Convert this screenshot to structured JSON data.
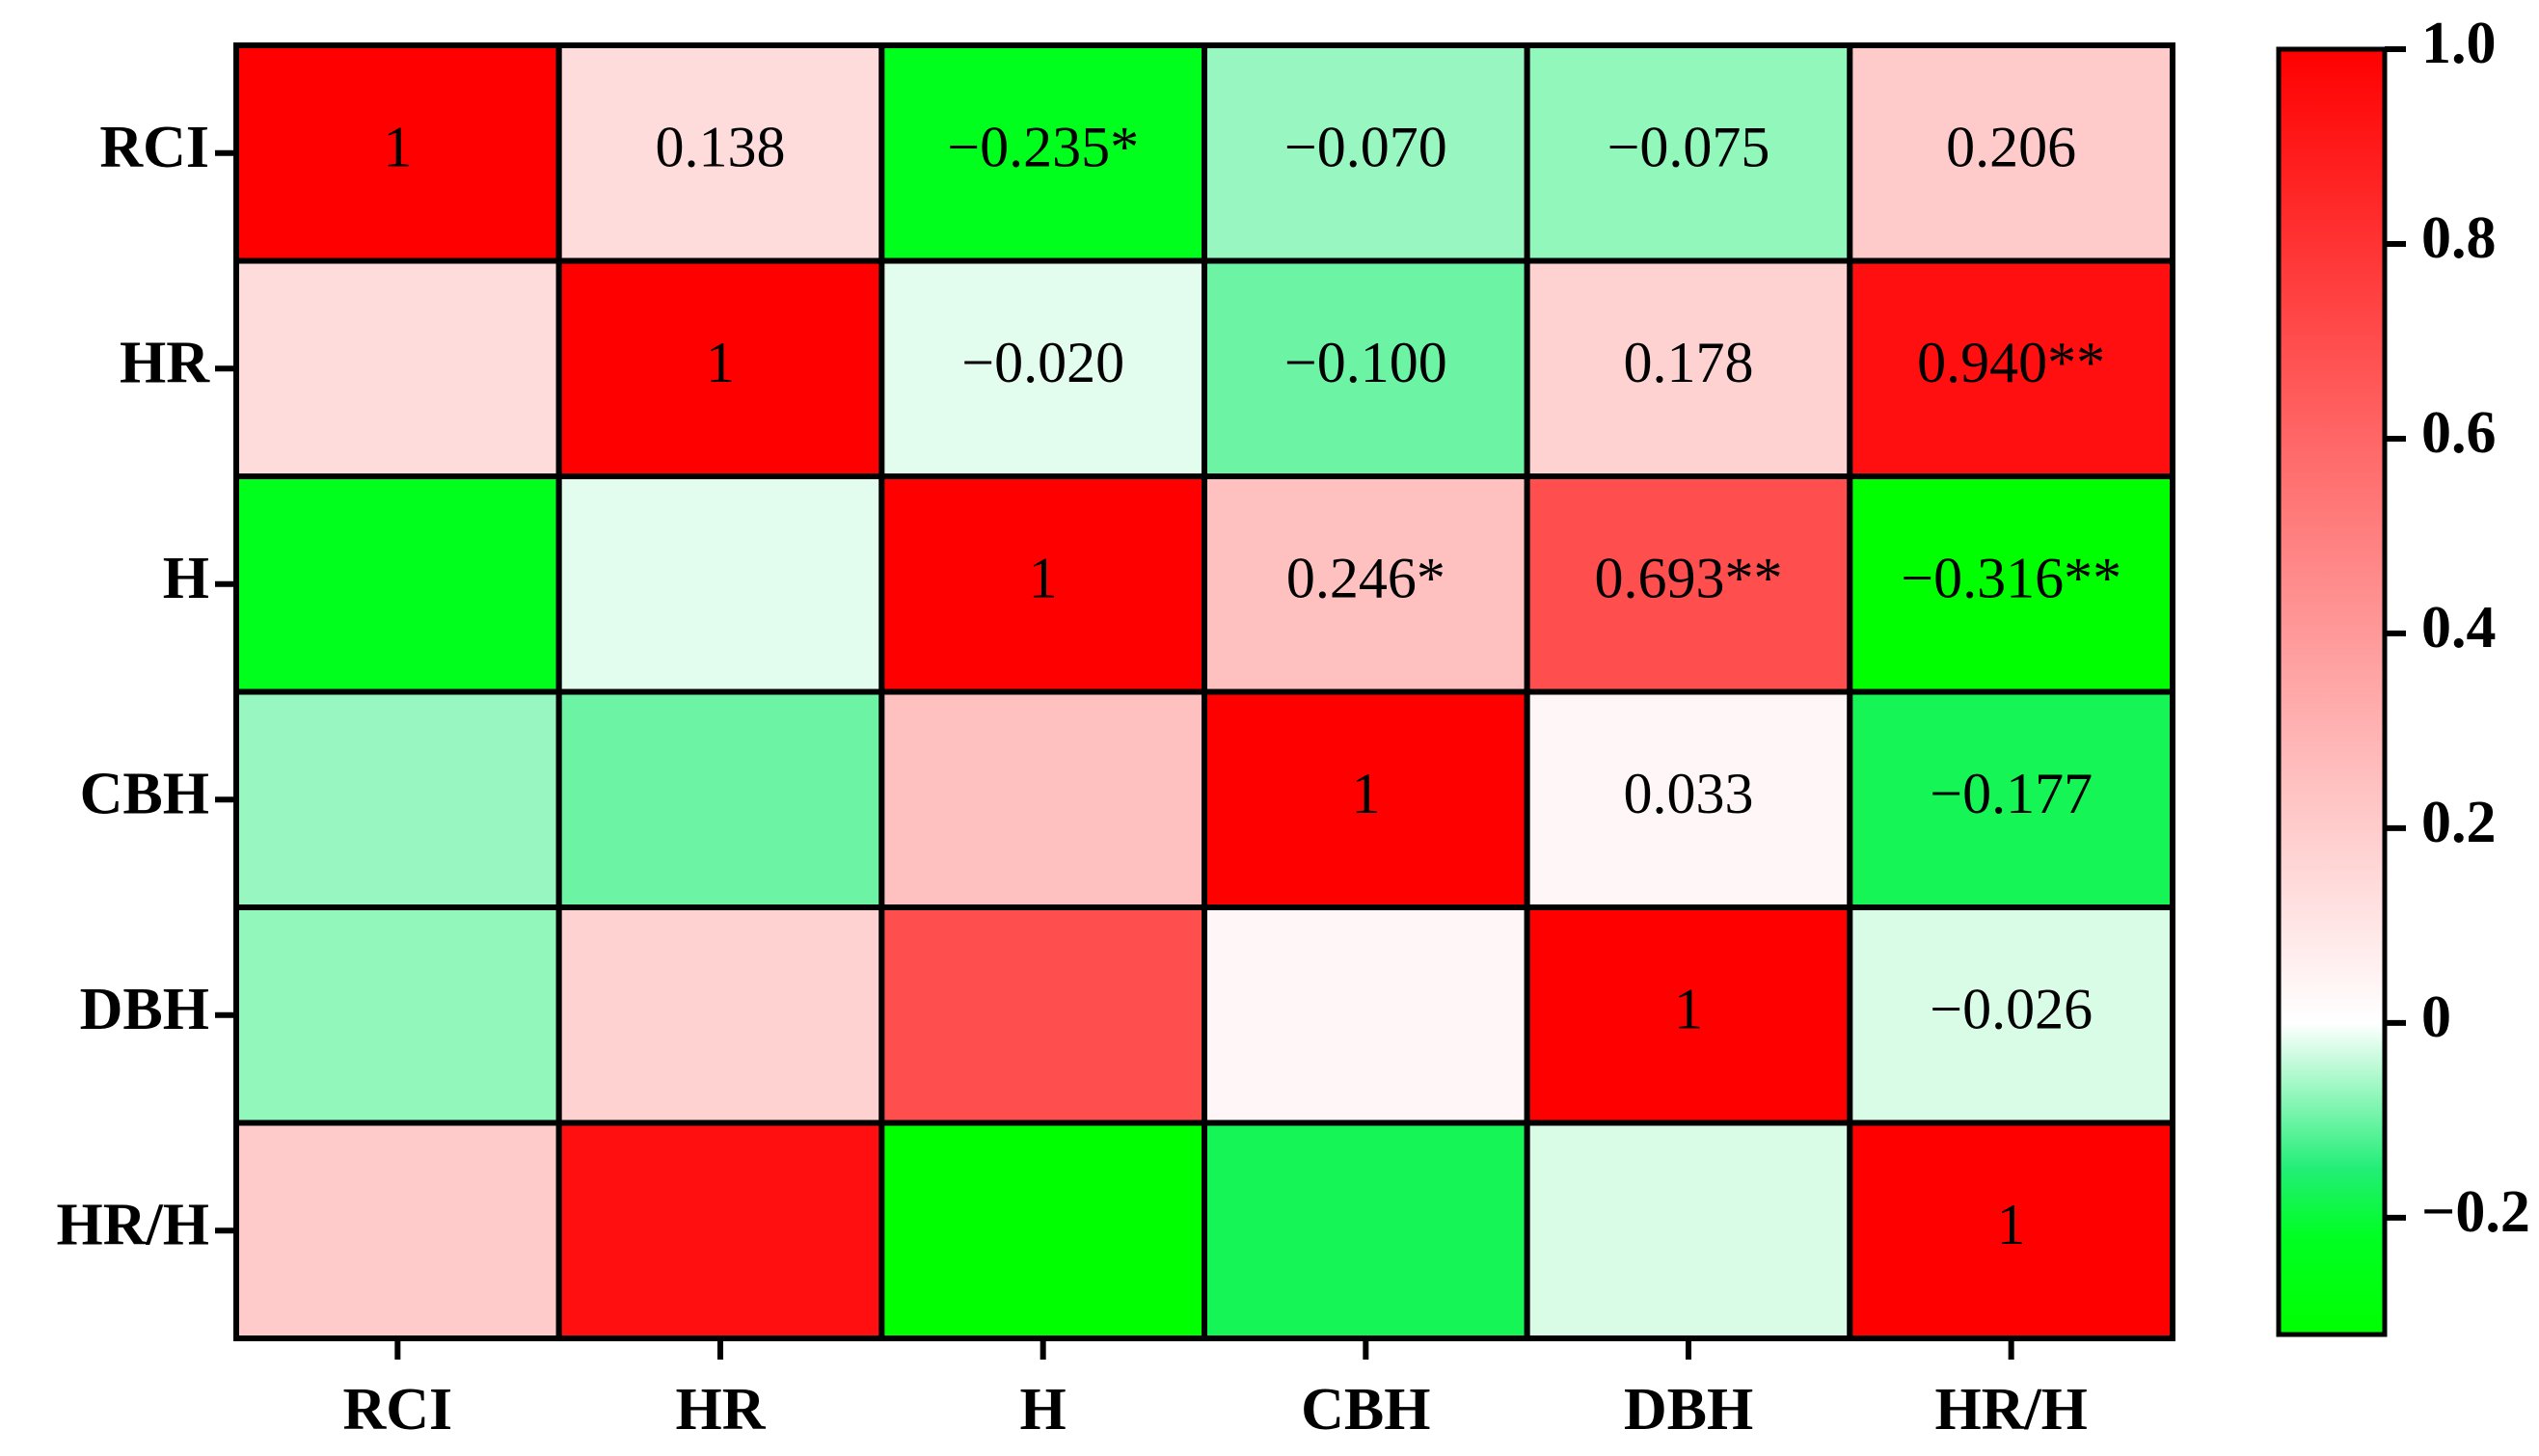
{
  "chart_data": {
    "type": "heatmap",
    "x_categories": [
      "RCI",
      "HR",
      "H",
      "CBH",
      "DBH",
      "HR/H"
    ],
    "y_categories": [
      "RCI",
      "HR",
      "H",
      "CBH",
      "DBH",
      "HR/H"
    ],
    "values": [
      [
        1,
        0.138,
        -0.235,
        -0.07,
        -0.075,
        0.206
      ],
      [
        0.138,
        1,
        -0.02,
        -0.1,
        0.178,
        0.94
      ],
      [
        -0.235,
        -0.02,
        1,
        0.246,
        0.693,
        -0.316
      ],
      [
        -0.07,
        -0.1,
        0.246,
        1,
        0.033,
        -0.177
      ],
      [
        -0.075,
        0.178,
        0.693,
        0.033,
        1,
        -0.026
      ],
      [
        0.206,
        0.94,
        -0.316,
        -0.177,
        -0.026,
        1
      ]
    ],
    "value_labels": [
      [
        "1",
        "0.138",
        "−0.235*",
        "−0.070",
        "−0.075",
        "0.206"
      ],
      [
        null,
        "1",
        "−0.020",
        "−0.100",
        "0.178",
        "0.940**"
      ],
      [
        null,
        null,
        "1",
        "0.246*",
        "0.693**",
        "−0.316**"
      ],
      [
        null,
        null,
        null,
        "1",
        "0.033",
        "−0.177"
      ],
      [
        null,
        null,
        null,
        null,
        "1",
        "−0.026"
      ],
      [
        null,
        null,
        null,
        null,
        null,
        "1"
      ]
    ],
    "colorscale": [
      [
        -0.32,
        "#00ff00"
      ],
      [
        -0.22,
        "#00ff22"
      ],
      [
        -0.15,
        "#22ee77"
      ],
      [
        0,
        "#ffffff"
      ],
      [
        1,
        "#ff0000"
      ]
    ],
    "clim": [
      -0.32,
      1
    ],
    "cticks": [
      {
        "value": 1,
        "label": "1.0"
      },
      0.8,
      0.6,
      0.4,
      0.2,
      0,
      {
        "value": -0.2,
        "label": "−0.2"
      }
    ]
  }
}
